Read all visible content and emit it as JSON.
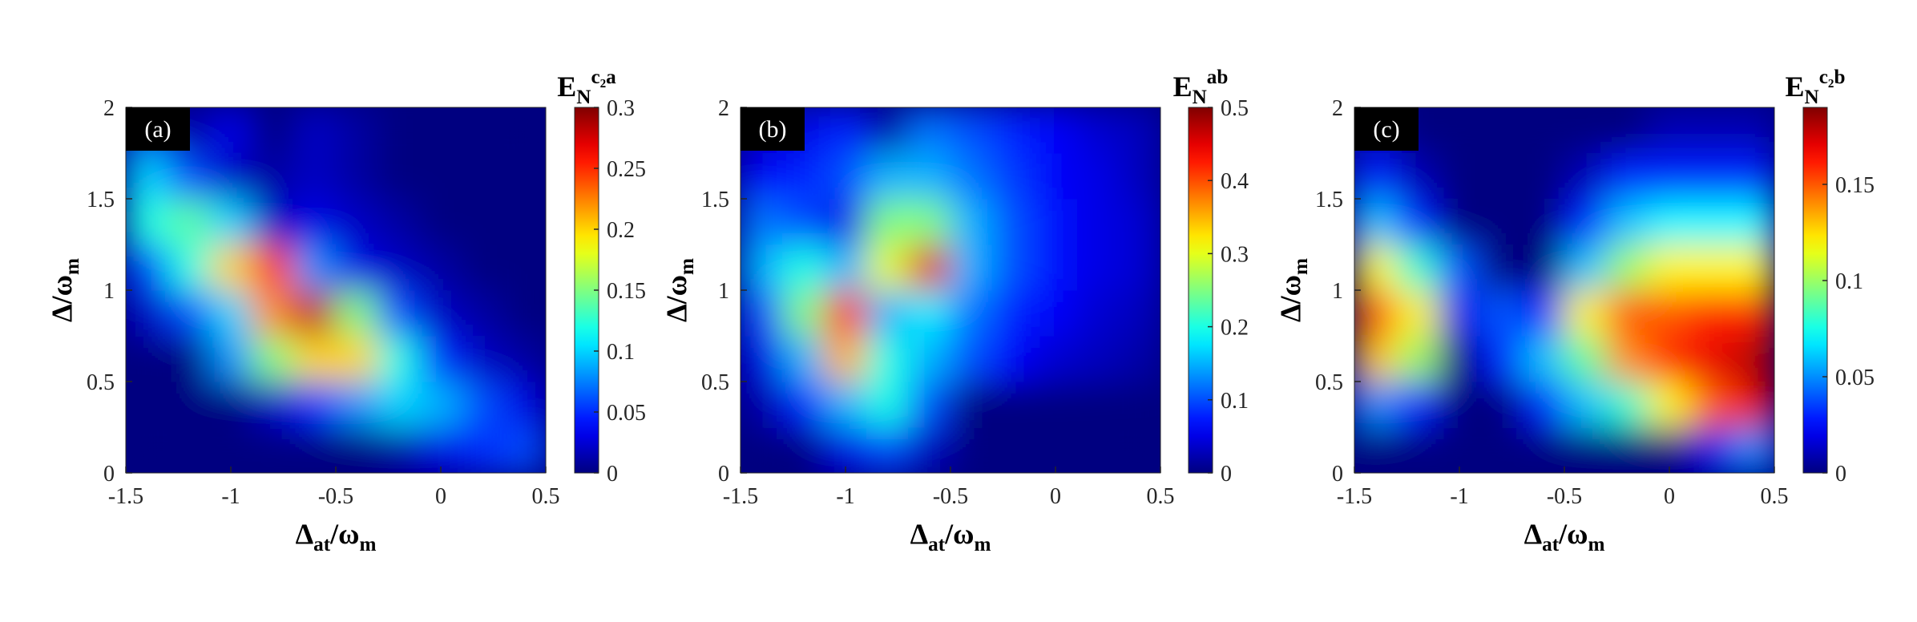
{
  "chart_data": [
    {
      "type": "heatmap",
      "panel_label": "(a)",
      "xlabel": [
        {
          "text": "Δ"
        },
        {
          "text": "at",
          "sub": true
        },
        {
          "text": "/ω"
        },
        {
          "text": "m",
          "sub": true
        }
      ],
      "ylabel": [
        {
          "text": "Δ"
        },
        {
          "text": "/ω"
        },
        {
          "text": "m",
          "sub": true
        }
      ],
      "colorbar_label": [
        {
          "text": "E"
        },
        {
          "text": "N",
          "sub": true
        },
        {
          "text": "c₂a",
          "sup": true
        }
      ],
      "xlim": [
        -1.5,
        0.5
      ],
      "ylim": [
        0,
        2
      ],
      "xticks": [
        -1.5,
        -1,
        -0.5,
        0,
        0.5
      ],
      "yticks": [
        0,
        0.5,
        1,
        1.5,
        2
      ],
      "clim": [
        0,
        0.3
      ],
      "cticks": [
        0,
        0.05,
        0.1,
        0.15,
        0.2,
        0.25,
        0.3
      ],
      "colormap": "jet",
      "z": [
        [
          0,
          0,
          0,
          0,
          0,
          0,
          0.01,
          0.03,
          0.05,
          0.06
        ],
        [
          0,
          0,
          0,
          0.02,
          0.05,
          0.08,
          0.1,
          0.09,
          0.06,
          0.03
        ],
        [
          0,
          0,
          0.08,
          0.15,
          0.2,
          0.2,
          0.12,
          0.05,
          0.02,
          0.01
        ],
        [
          0.02,
          0.06,
          0.1,
          0.22,
          0.28,
          0.15,
          0.06,
          0.02,
          0.01,
          0
        ],
        [
          0.06,
          0.12,
          0.2,
          0.25,
          0.08,
          0.03,
          0.02,
          0.01,
          0,
          0
        ],
        [
          0.12,
          0.14,
          0.1,
          0.02,
          0.03,
          0.02,
          0.01,
          0,
          0,
          0
        ],
        [
          0.1,
          0.06,
          0.02,
          0.01,
          0.02,
          0.01,
          0,
          0,
          0,
          0
        ],
        [
          0.03,
          0.01,
          0.03,
          0,
          0.02,
          0.01,
          0,
          0,
          0,
          0
        ]
      ]
    },
    {
      "type": "heatmap",
      "panel_label": "(b)",
      "xlabel": [
        {
          "text": "Δ"
        },
        {
          "text": "at",
          "sub": true
        },
        {
          "text": "/ω"
        },
        {
          "text": "m",
          "sub": true
        }
      ],
      "ylabel": [
        {
          "text": "Δ"
        },
        {
          "text": "/ω"
        },
        {
          "text": "m",
          "sub": true
        }
      ],
      "colorbar_label": [
        {
          "text": "E"
        },
        {
          "text": "N",
          "sub": true
        },
        {
          "text": "ab",
          "sup": true
        }
      ],
      "xlim": [
        -1.5,
        0.5
      ],
      "ylim": [
        0,
        2
      ],
      "xticks": [
        -1.5,
        -1,
        -0.5,
        0,
        0.5
      ],
      "yticks": [
        0,
        0.5,
        1,
        1.5,
        2
      ],
      "clim": [
        0,
        0.5
      ],
      "cticks": [
        0,
        0.1,
        0.2,
        0.3,
        0.4,
        0.5
      ],
      "colormap": "jet",
      "z": [
        [
          0,
          0,
          0.05,
          0.1,
          0.03,
          0,
          0,
          0,
          0,
          0
        ],
        [
          0.02,
          0.08,
          0.15,
          0.2,
          0.1,
          0,
          0,
          0,
          0,
          0
        ],
        [
          0.05,
          0.15,
          0.35,
          0.2,
          0.15,
          0.1,
          0.06,
          0.04,
          0.03,
          0.02
        ],
        [
          0.1,
          0.25,
          0.42,
          0.15,
          0.18,
          0.12,
          0.08,
          0.06,
          0.04,
          0.03
        ],
        [
          0.15,
          0.2,
          0.15,
          0.3,
          0.45,
          0.15,
          0.1,
          0.07,
          0.05,
          0.04
        ],
        [
          0.12,
          0.1,
          0.05,
          0.25,
          0.25,
          0.15,
          0.1,
          0.07,
          0.05,
          0.04
        ],
        [
          0.06,
          0.08,
          0.1,
          0.15,
          0.15,
          0.12,
          0.09,
          0.06,
          0.05,
          0.03
        ],
        [
          0.03,
          0.05,
          0.08,
          0.02,
          0.12,
          0.1,
          0.08,
          0.06,
          0.04,
          0.03
        ]
      ]
    },
    {
      "type": "heatmap",
      "panel_label": "(c)",
      "xlabel": [
        {
          "text": "Δ"
        },
        {
          "text": "at",
          "sub": true
        },
        {
          "text": "/ω"
        },
        {
          "text": "m",
          "sub": true
        }
      ],
      "ylabel": [
        {
          "text": "Δ"
        },
        {
          "text": "/ω"
        },
        {
          "text": "m",
          "sub": true
        }
      ],
      "colorbar_label": [
        {
          "text": "E"
        },
        {
          "text": "N",
          "sub": true
        },
        {
          "text": "c₂b",
          "sup": true
        }
      ],
      "xlim": [
        -1.5,
        0.5
      ],
      "ylim": [
        0,
        2
      ],
      "xticks": [
        -1.5,
        -1,
        -0.5,
        0,
        0.5
      ],
      "yticks": [
        0,
        0.5,
        1,
        1.5,
        2
      ],
      "clim": [
        0,
        0.19
      ],
      "cticks": [
        0,
        0.05,
        0.1,
        0.15
      ],
      "colormap": "jet",
      "z": [
        [
          0,
          0,
          0,
          0,
          0,
          0,
          0,
          0,
          0.02,
          0.05
        ],
        [
          0.05,
          0.03,
          0,
          0,
          0.03,
          0.06,
          0.08,
          0.12,
          0.15,
          0.17
        ],
        [
          0.13,
          0.1,
          0,
          0.03,
          0.06,
          0.09,
          0.14,
          0.16,
          0.17,
          0.18
        ],
        [
          0.15,
          0.12,
          0.02,
          0.04,
          0.03,
          0.12,
          0.15,
          0.15,
          0.16,
          0.16
        ],
        [
          0.12,
          0.08,
          0.04,
          0,
          0,
          0.06,
          0.1,
          0.12,
          0.12,
          0.12
        ],
        [
          0.06,
          0.03,
          0,
          0,
          0,
          0.03,
          0.06,
          0.07,
          0.07,
          0.07
        ],
        [
          0.03,
          0.01,
          0,
          0,
          0,
          0.01,
          0.03,
          0.03,
          0.03,
          0.03
        ],
        [
          0.01,
          0,
          0,
          0,
          0,
          0,
          0,
          0.01,
          0.01,
          0.01
        ]
      ]
    }
  ]
}
